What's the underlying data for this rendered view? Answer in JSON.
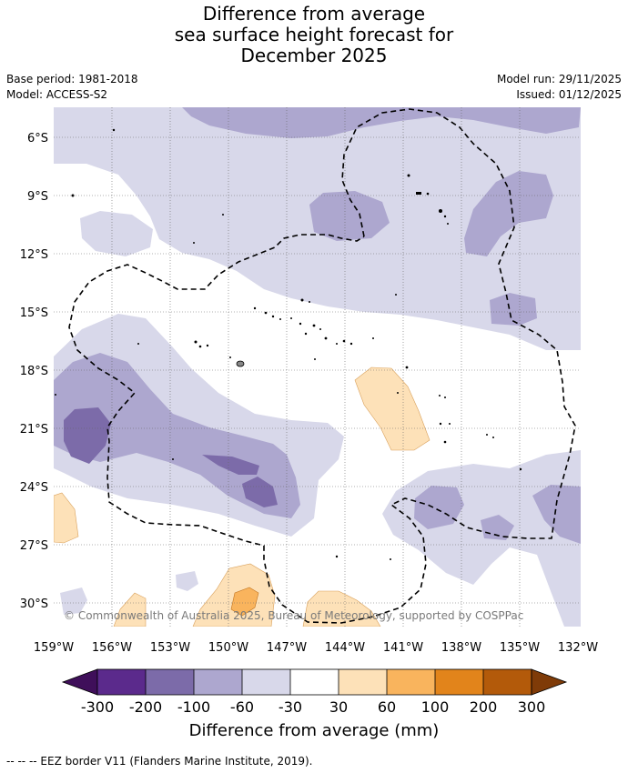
{
  "title": {
    "line1": "Difference from average",
    "line2": "sea surface height forecast for",
    "line3": "December 2025"
  },
  "meta": {
    "base_period": "Base period: 1981-2018",
    "model": "Model: ACCESS-S2",
    "model_run": "Model run: 29/11/2025",
    "issued": "Issued: 01/12/2025"
  },
  "map": {
    "lat_labels": [
      "6°S",
      "9°S",
      "12°S",
      "15°S",
      "18°S",
      "21°S",
      "24°S",
      "27°S",
      "30°S"
    ],
    "lon_labels": [
      "159°W",
      "156°W",
      "153°W",
      "150°W",
      "147°W",
      "144°W",
      "141°W",
      "138°W",
      "135°W",
      "132°W"
    ],
    "copyright": "© Commonwealth of Australia 2025, Bureau of Meteorology, supported by COSPPac"
  },
  "colorbar": {
    "ticks": [
      "-300",
      "-200",
      "-100",
      "-60",
      "-30",
      "30",
      "60",
      "100",
      "200",
      "300"
    ],
    "colors": [
      "#3f0f5a",
      "#5b2a8c",
      "#7c6ba9",
      "#ada7cf",
      "#d8d8ea",
      "#ffffff",
      "#fde1b8",
      "#f9b45d",
      "#e2841b",
      "#b35a0a",
      "#7f3b08"
    ],
    "label": "Difference from average (mm)"
  },
  "footer": {
    "legend": "--  --  -- EEZ border V11 (Flanders Marine Institute, 2019)."
  }
}
